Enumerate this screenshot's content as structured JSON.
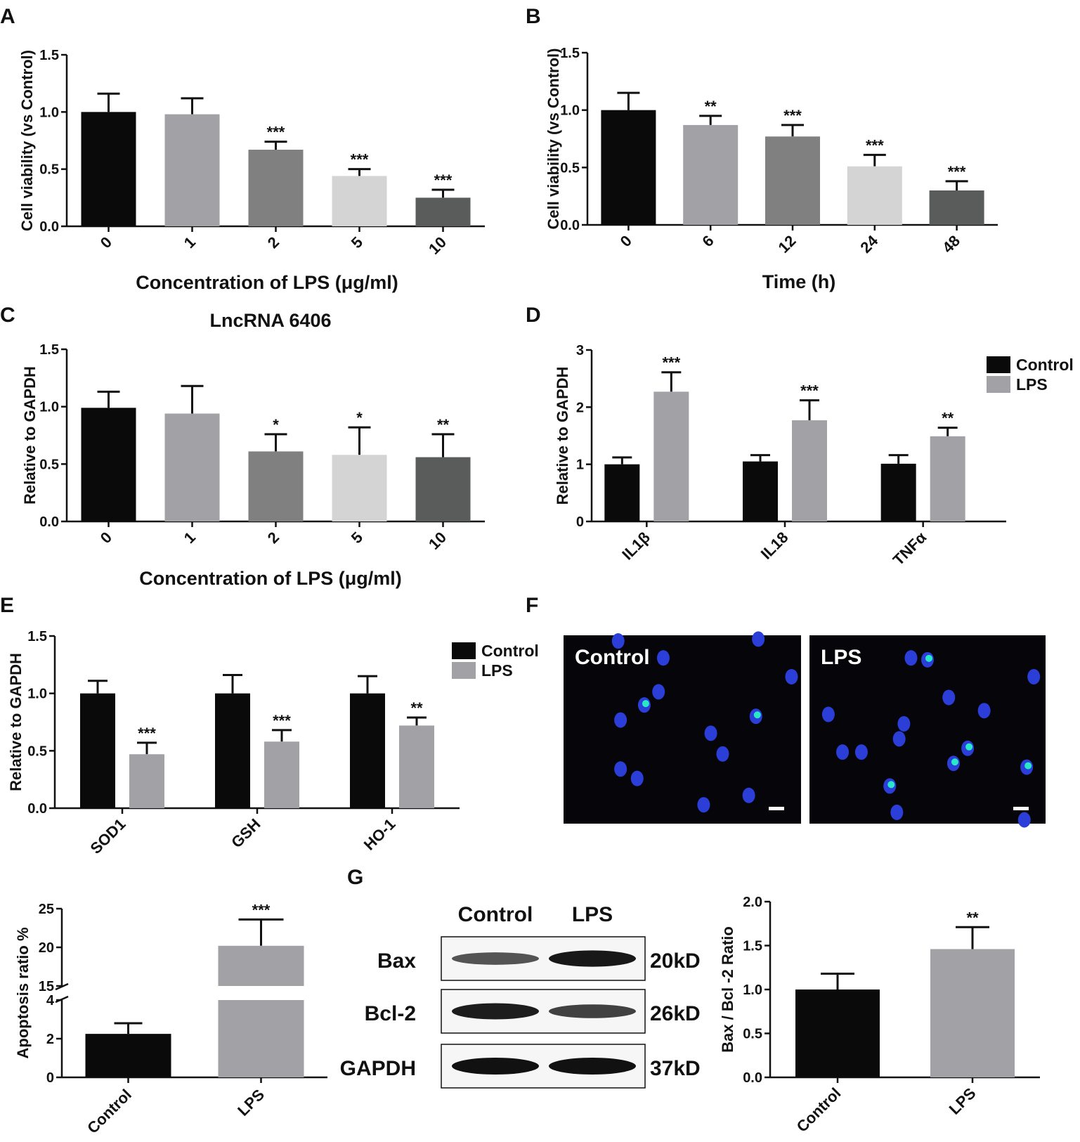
{
  "panel_labels": [
    "A",
    "B",
    "C",
    "D",
    "E",
    "F",
    "G"
  ],
  "colors": {
    "black": "#0a0a0a",
    "gray1": "#a2a2a6",
    "gray2": "#808080",
    "lightgray": "#d4d4d4",
    "darkgray": "#5a5c5c",
    "control": "#0a0a0a",
    "lps": "#a2a2a6",
    "nucleus": "#2b3ed8",
    "tunel": "#28e8c8"
  },
  "chart_data": [
    {
      "id": "A",
      "type": "bar",
      "title": "",
      "ylabel": "Cell viability (vs Control)",
      "xlabel": "Concentration of LPS (μg/ml)",
      "ylim": [
        0,
        1.5
      ],
      "yticks": [
        "0.0",
        "0.5",
        "1.0",
        "1.5"
      ],
      "categories": [
        "0",
        "1",
        "2",
        "5",
        "10"
      ],
      "values": [
        1.0,
        0.98,
        0.67,
        0.44,
        0.25
      ],
      "errors": [
        0.16,
        0.14,
        0.07,
        0.06,
        0.07
      ],
      "significance": [
        "",
        "",
        "***",
        "***",
        "***"
      ],
      "bar_colors": [
        "black",
        "gray1",
        "gray2",
        "lightgray",
        "darkgray"
      ]
    },
    {
      "id": "B",
      "type": "bar",
      "title": "",
      "ylabel": "Cell viability (vs Control)",
      "xlabel": "Time (h)",
      "ylim": [
        0,
        1.5
      ],
      "yticks": [
        "0.0",
        "0.5",
        "1.0",
        "1.5"
      ],
      "categories": [
        "0",
        "6",
        "12",
        "24",
        "48"
      ],
      "values": [
        1.0,
        0.87,
        0.77,
        0.51,
        0.3
      ],
      "errors": [
        0.15,
        0.08,
        0.1,
        0.1,
        0.08
      ],
      "significance": [
        "",
        "**",
        "***",
        "***",
        "***"
      ],
      "bar_colors": [
        "black",
        "gray1",
        "gray2",
        "lightgray",
        "darkgray"
      ]
    },
    {
      "id": "C",
      "type": "bar",
      "title": "LncRNA 6406",
      "ylabel": "Relative to GAPDH",
      "xlabel": "Concentration of LPS (μg/ml)",
      "ylim": [
        0,
        1.5
      ],
      "yticks": [
        "0.0",
        "0.5",
        "1.0",
        "1.5"
      ],
      "categories": [
        "0",
        "1",
        "2",
        "5",
        "10"
      ],
      "values": [
        0.99,
        0.94,
        0.61,
        0.58,
        0.56
      ],
      "errors": [
        0.14,
        0.24,
        0.15,
        0.24,
        0.2
      ],
      "significance": [
        "",
        "",
        "*",
        "*",
        "**"
      ],
      "bar_colors": [
        "black",
        "gray1",
        "gray2",
        "lightgray",
        "darkgray"
      ]
    },
    {
      "id": "D",
      "type": "bar",
      "title": "",
      "ylabel": "Relative to GAPDH",
      "xlabel": "",
      "ylim": [
        0,
        3
      ],
      "yticks": [
        "0",
        "1",
        "2",
        "3"
      ],
      "categories": [
        "IL1β",
        "IL18",
        "TNFα"
      ],
      "series": [
        {
          "name": "Control",
          "values": [
            1.0,
            1.05,
            1.01
          ],
          "errors": [
            0.12,
            0.11,
            0.15
          ],
          "significance": [
            "",
            "",
            ""
          ]
        },
        {
          "name": "LPS",
          "values": [
            2.27,
            1.77,
            1.49
          ],
          "errors": [
            0.34,
            0.35,
            0.15
          ],
          "significance": [
            "***",
            "***",
            "**"
          ]
        }
      ],
      "legend": "top-right"
    },
    {
      "id": "E",
      "type": "bar",
      "title": "",
      "ylabel": "Relative to GAPDH",
      "xlabel": "",
      "ylim": [
        0,
        1.5
      ],
      "yticks": [
        "0.0",
        "0.5",
        "1.0",
        "1.5"
      ],
      "categories": [
        "SOD1",
        "GSH",
        "HO-1"
      ],
      "series": [
        {
          "name": "Control",
          "values": [
            1.0,
            1.0,
            1.0
          ],
          "errors": [
            0.11,
            0.16,
            0.15
          ],
          "significance": [
            "",
            "",
            ""
          ]
        },
        {
          "name": "LPS",
          "values": [
            0.47,
            0.58,
            0.72
          ],
          "errors": [
            0.1,
            0.1,
            0.07
          ],
          "significance": [
            "***",
            "***",
            "**"
          ]
        }
      ],
      "legend": "top-right"
    },
    {
      "id": "F-chart",
      "type": "bar",
      "title": "",
      "ylabel": "Apoptosis ratio %",
      "xlabel": "",
      "broken_axis": {
        "lower": [
          0,
          4
        ],
        "upper": [
          15,
          25
        ]
      },
      "yticks_lower": [
        "0",
        "2",
        "4"
      ],
      "yticks_upper": [
        "15",
        "20",
        "25"
      ],
      "categories": [
        "Control",
        "LPS"
      ],
      "values": [
        2.25,
        20.2
      ],
      "errors": [
        0.55,
        3.4
      ],
      "significance": [
        "",
        "***"
      ],
      "bar_colors": [
        "black",
        "gray1"
      ]
    },
    {
      "id": "G",
      "type": "bar",
      "title": "",
      "ylabel": "Bax / Bcl -2 Ratio",
      "xlabel": "",
      "ylim": [
        0,
        2.0
      ],
      "yticks": [
        "0.0",
        "0.5",
        "1.0",
        "1.5",
        "2.0"
      ],
      "categories": [
        "Control",
        "LPS"
      ],
      "values": [
        1.0,
        1.46
      ],
      "errors": [
        0.18,
        0.25
      ],
      "significance": [
        "",
        "**"
      ],
      "bar_colors": [
        "black",
        "gray1"
      ]
    }
  ],
  "microscopy": {
    "panels": [
      {
        "label": "Control",
        "nuclei": [
          [
            0.23,
            0.03
          ],
          [
            0.42,
            0.12
          ],
          [
            0.82,
            0.02
          ],
          [
            0.96,
            0.22
          ],
          [
            0.4,
            0.3
          ],
          [
            0.34,
            0.37
          ],
          [
            0.24,
            0.45
          ],
          [
            0.62,
            0.52
          ],
          [
            0.81,
            0.43
          ],
          [
            0.67,
            0.63
          ],
          [
            0.24,
            0.71
          ],
          [
            0.31,
            0.76
          ],
          [
            0.78,
            0.85
          ],
          [
            0.59,
            0.9
          ]
        ],
        "tunel": [
          [
            0.34,
            0.37
          ],
          [
            0.81,
            0.43
          ]
        ]
      },
      {
        "label": "LPS",
        "nuclei": [
          [
            0.43,
            0.12
          ],
          [
            0.5,
            0.13
          ],
          [
            0.95,
            0.22
          ],
          [
            0.59,
            0.33
          ],
          [
            0.74,
            0.4
          ],
          [
            0.08,
            0.42
          ],
          [
            0.4,
            0.47
          ],
          [
            0.38,
            0.55
          ],
          [
            0.67,
            0.6
          ],
          [
            0.14,
            0.62
          ],
          [
            0.22,
            0.62
          ],
          [
            0.61,
            0.68
          ],
          [
            0.92,
            0.7
          ],
          [
            0.34,
            0.8
          ],
          [
            0.37,
            0.94
          ],
          [
            0.91,
            0.98
          ]
        ],
        "tunel": [
          [
            0.5,
            0.13
          ],
          [
            0.67,
            0.6
          ],
          [
            0.61,
            0.68
          ],
          [
            0.34,
            0.8
          ],
          [
            0.92,
            0.7
          ]
        ]
      }
    ]
  },
  "western_blot": {
    "columns": [
      "Control",
      "LPS"
    ],
    "rows": [
      {
        "label": "Bax",
        "size": "20kD",
        "intensity": [
          0.55,
          0.95
        ]
      },
      {
        "label": "Bcl-2",
        "size": "26kD",
        "intensity": [
          0.92,
          0.68
        ]
      },
      {
        "label": "GAPDH",
        "size": "37kD",
        "intensity": [
          1.0,
          1.0
        ]
      }
    ]
  }
}
